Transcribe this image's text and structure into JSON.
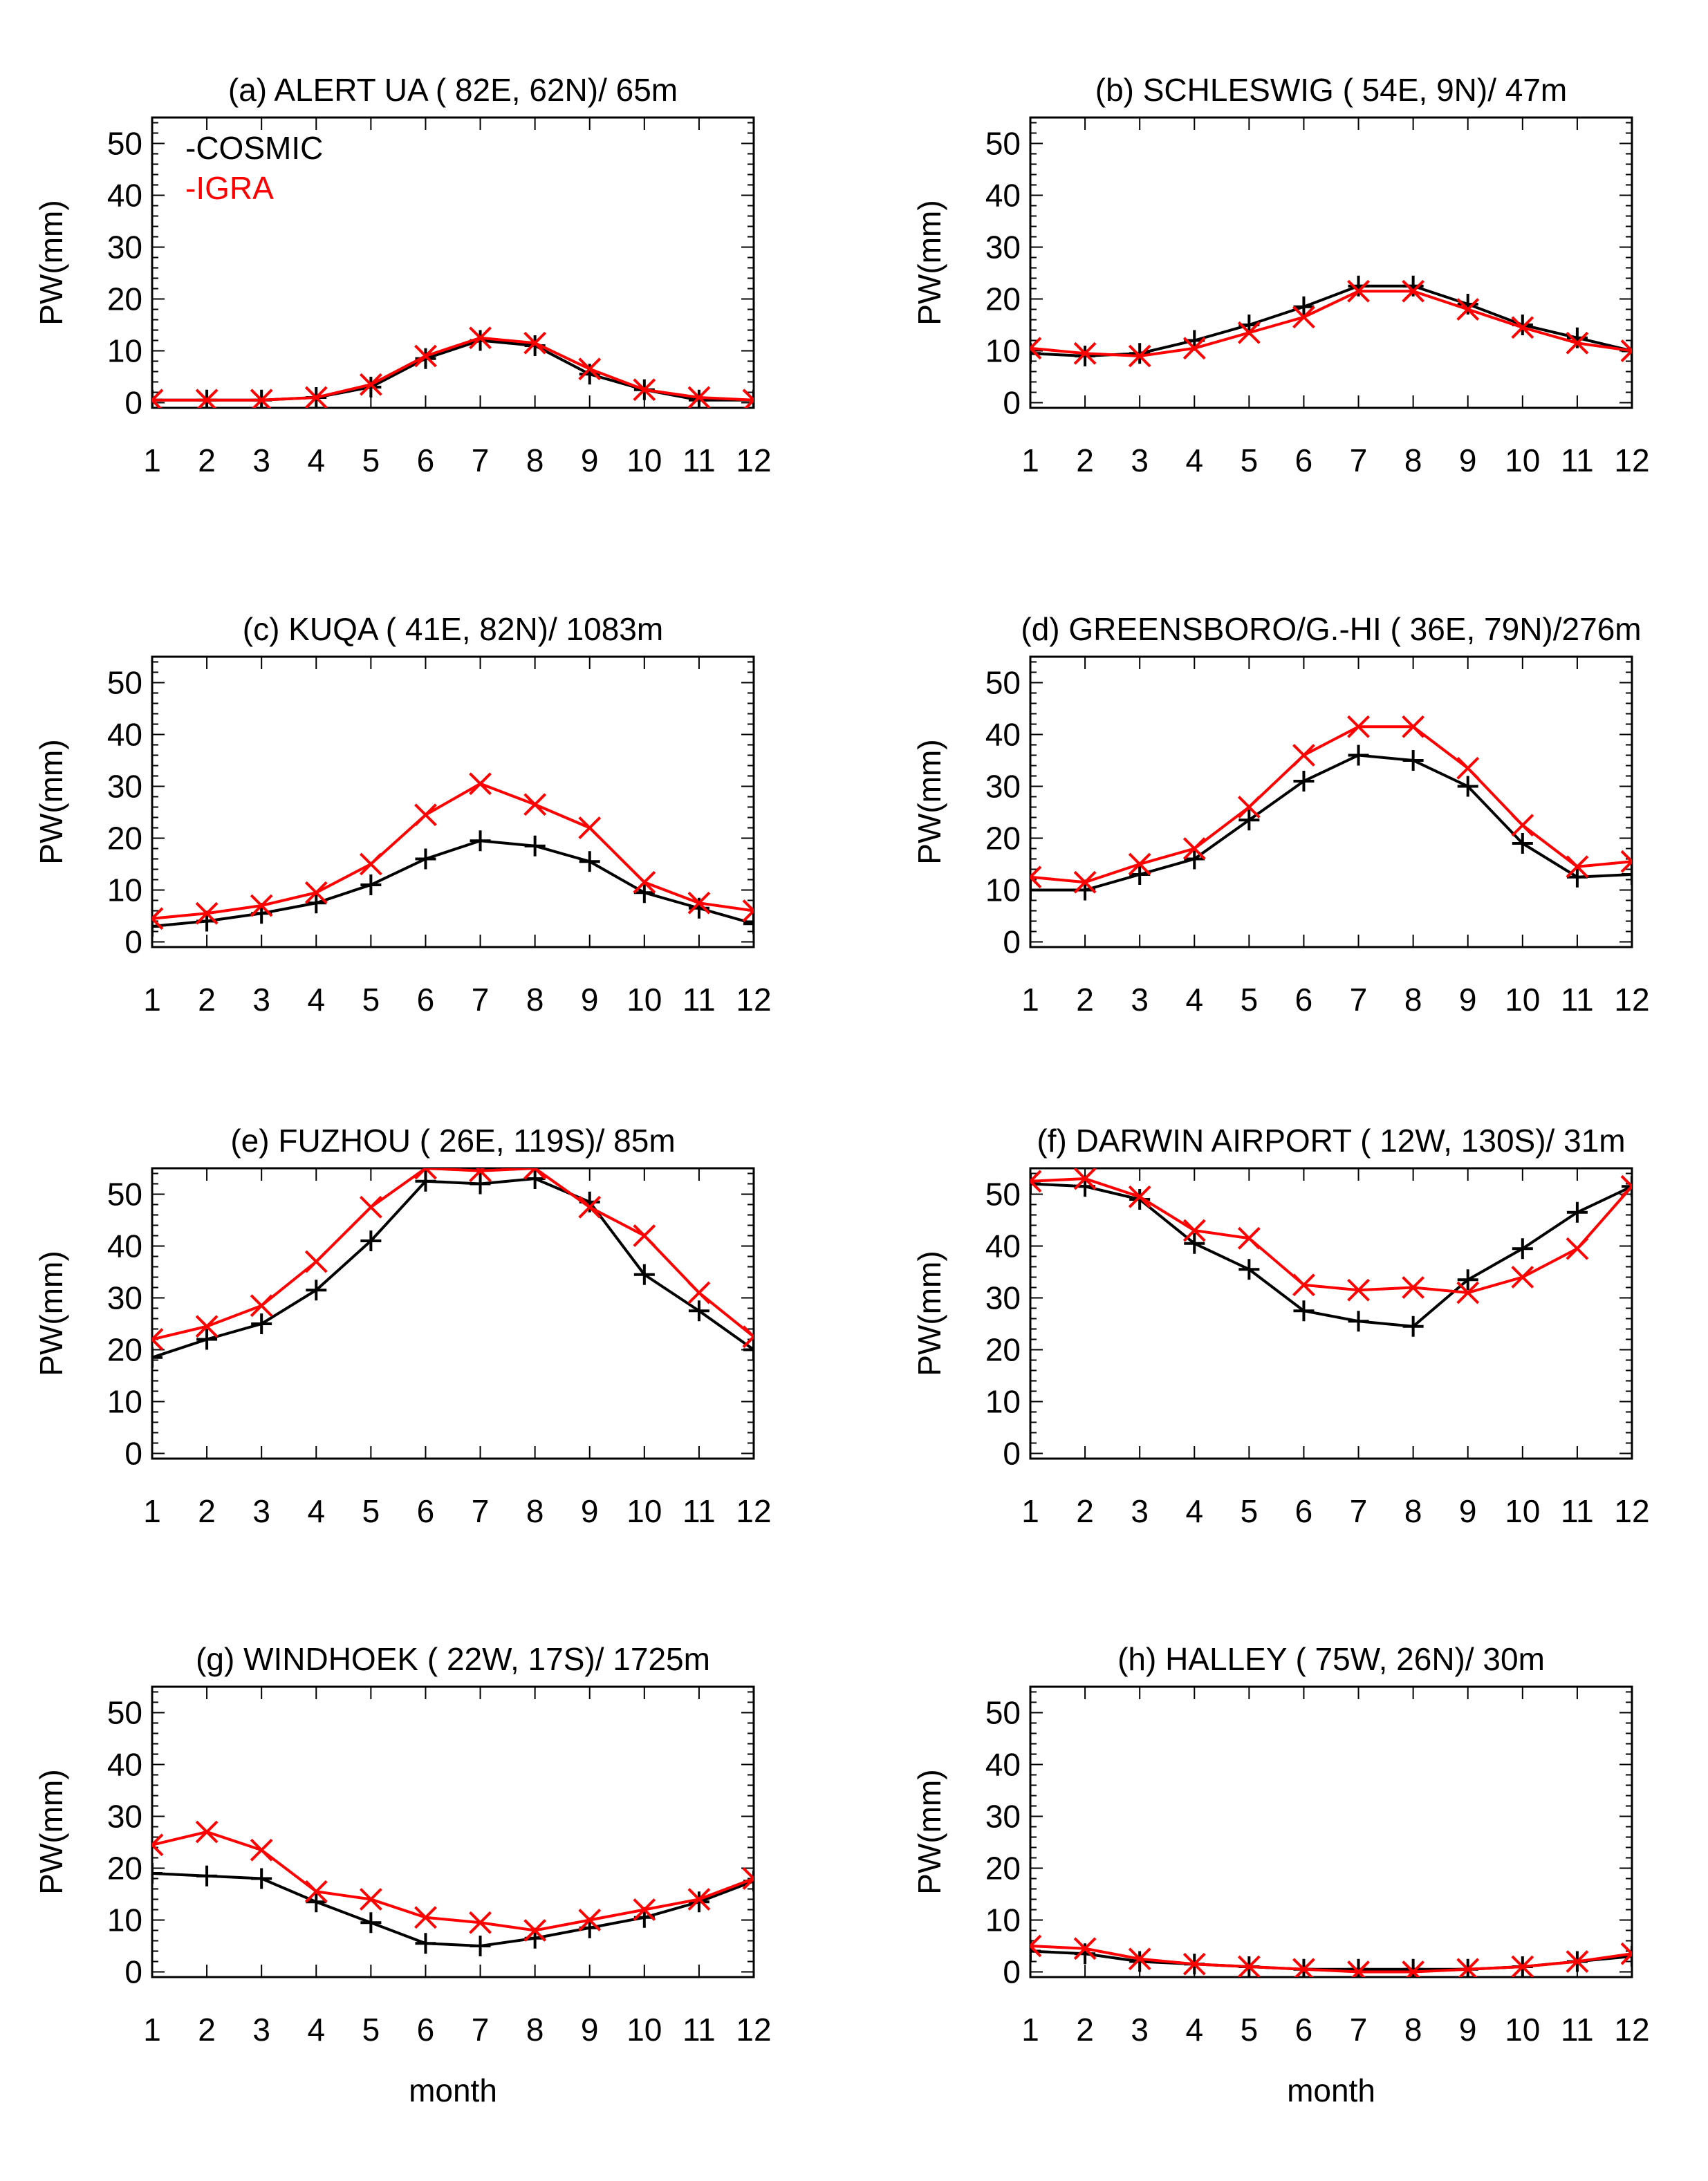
{
  "figure": {
    "y_ticks": [
      0,
      10,
      20,
      30,
      40,
      50
    ],
    "x_ticks": [
      1,
      2,
      3,
      4,
      5,
      6,
      7,
      8,
      9,
      10,
      11,
      12
    ]
  },
  "chart_data": [
    {
      "type": "line",
      "title": "(a) ALERT UA ( 82E, 62N)/ 65m",
      "ylabel": "PW(mm)",
      "xlabel": "",
      "legend": {
        "position": "top-left",
        "entries": [
          {
            "label": "-COSMIC",
            "color": "#000000"
          },
          {
            "label": "-IGRA",
            "color": "#ff0000"
          }
        ]
      },
      "x": [
        1,
        2,
        3,
        4,
        5,
        6,
        7,
        8,
        9,
        10,
        11,
        12
      ],
      "xlim": [
        1,
        12
      ],
      "ylim": [
        -1,
        55
      ],
      "series": [
        {
          "name": "COSMIC",
          "color": "#000000",
          "marker": "plus",
          "values": [
            0.5,
            0.5,
            0.5,
            1,
            3,
            8.5,
            12,
            11,
            5.5,
            2.5,
            0.5,
            0.5
          ]
        },
        {
          "name": "IGRA",
          "color": "#ff0000",
          "marker": "x",
          "values": [
            0.5,
            0.5,
            0.5,
            1,
            3.5,
            9,
            12.5,
            11.5,
            6.5,
            2.5,
            1,
            0.5
          ]
        }
      ]
    },
    {
      "type": "line",
      "title": "(b) SCHLESWIG ( 54E,  9N)/ 47m",
      "ylabel": "PW(mm)",
      "xlabel": "",
      "x": [
        1,
        2,
        3,
        4,
        5,
        6,
        7,
        8,
        9,
        10,
        11,
        12
      ],
      "xlim": [
        1,
        12
      ],
      "ylim": [
        -1,
        55
      ],
      "series": [
        {
          "name": "COSMIC",
          "color": "#000000",
          "marker": "plus",
          "values": [
            9.5,
            9,
            9.5,
            12,
            15,
            18.5,
            22.5,
            22.5,
            19,
            15,
            12.5,
            10
          ]
        },
        {
          "name": "IGRA",
          "color": "#ff0000",
          "marker": "x",
          "values": [
            10.5,
            9.5,
            9,
            10.5,
            13.5,
            16.5,
            21.5,
            21.5,
            18,
            14.5,
            11.5,
            10
          ]
        }
      ]
    },
    {
      "type": "line",
      "title": "(c) KUQA ( 41E, 82N)/ 1083m",
      "ylabel": "PW(mm)",
      "xlabel": "",
      "x": [
        1,
        2,
        3,
        4,
        5,
        6,
        7,
        8,
        9,
        10,
        11,
        12
      ],
      "xlim": [
        1,
        12
      ],
      "ylim": [
        -1,
        55
      ],
      "series": [
        {
          "name": "COSMIC",
          "color": "#000000",
          "marker": "plus",
          "values": [
            3,
            4,
            5.5,
            7.5,
            11,
            16,
            19.5,
            18.5,
            15.5,
            9.5,
            6.5,
            3.5
          ]
        },
        {
          "name": "IGRA",
          "color": "#ff0000",
          "marker": "x",
          "values": [
            4.5,
            5.5,
            7,
            9.5,
            15,
            24.5,
            30.5,
            26.5,
            22,
            11.5,
            7.5,
            6
          ]
        }
      ]
    },
    {
      "type": "line",
      "title": "(d) GREENSBORO/G.-HI ( 36E, 79N)/276m",
      "ylabel": "PW(mm)",
      "xlabel": "",
      "x": [
        1,
        2,
        3,
        4,
        5,
        6,
        7,
        8,
        9,
        10,
        11,
        12
      ],
      "xlim": [
        1,
        12
      ],
      "ylim": [
        -1,
        55
      ],
      "series": [
        {
          "name": "COSMIC",
          "color": "#000000",
          "marker": "plus",
          "values": [
            10,
            10,
            13,
            16,
            23.5,
            31,
            36,
            35,
            30,
            19,
            12.5,
            13
          ]
        },
        {
          "name": "IGRA",
          "color": "#ff0000",
          "marker": "x",
          "values": [
            12.5,
            11.5,
            15,
            18,
            26,
            36,
            41.5,
            41.5,
            33.5,
            22.5,
            14.5,
            15.5
          ]
        }
      ]
    },
    {
      "type": "line",
      "title": "(e) FUZHOU ( 26E, 119S)/  85m",
      "ylabel": "PW(mm)",
      "xlabel": "",
      "x": [
        1,
        2,
        3,
        4,
        5,
        6,
        7,
        8,
        9,
        10,
        11,
        12
      ],
      "xlim": [
        1,
        12
      ],
      "ylim": [
        -1,
        55
      ],
      "series": [
        {
          "name": "COSMIC",
          "color": "#000000",
          "marker": "plus",
          "values": [
            18.5,
            22,
            25,
            31.5,
            41,
            52.5,
            52,
            53,
            48.5,
            34.5,
            27.5,
            20
          ]
        },
        {
          "name": "IGRA",
          "color": "#ff0000",
          "marker": "x",
          "values": [
            22,
            24.5,
            28.5,
            37,
            47.5,
            55,
            54.5,
            55,
            47.5,
            42,
            31,
            22.5
          ]
        }
      ]
    },
    {
      "type": "line",
      "title": "(f) DARWIN AIRPORT    ( 12W, 130S)/ 31m",
      "ylabel": "PW(mm)",
      "xlabel": "",
      "x": [
        1,
        2,
        3,
        4,
        5,
        6,
        7,
        8,
        9,
        10,
        11,
        12
      ],
      "xlim": [
        1,
        12
      ],
      "ylim": [
        -1,
        55
      ],
      "series": [
        {
          "name": "COSMIC",
          "color": "#000000",
          "marker": "plus",
          "values": [
            52,
            51.5,
            49,
            40.5,
            35.5,
            27.5,
            25.5,
            24.5,
            33.5,
            39.5,
            46.5,
            51.5
          ]
        },
        {
          "name": "IGRA",
          "color": "#ff0000",
          "marker": "x",
          "values": [
            52.5,
            53,
            49.5,
            43,
            41.5,
            32.5,
            31.5,
            32,
            31,
            34,
            39.5,
            51.5
          ]
        }
      ]
    },
    {
      "type": "line",
      "title": "(g) WINDHOEK ( 22W, 17S)/ 1725m",
      "ylabel": "PW(mm)",
      "xlabel": "month",
      "x": [
        1,
        2,
        3,
        4,
        5,
        6,
        7,
        8,
        9,
        10,
        11,
        12
      ],
      "xlim": [
        1,
        12
      ],
      "ylim": [
        -1,
        55
      ],
      "series": [
        {
          "name": "COSMIC",
          "color": "#000000",
          "marker": "plus",
          "values": [
            19,
            18.5,
            18,
            13.5,
            9.5,
            5.5,
            5,
            6.5,
            8.5,
            10.5,
            13.5,
            17.5
          ]
        },
        {
          "name": "IGRA",
          "color": "#ff0000",
          "marker": "x",
          "values": [
            24.5,
            27,
            23.5,
            15.5,
            14,
            10.5,
            9.5,
            8,
            10,
            12,
            14,
            18
          ]
        }
      ]
    },
    {
      "type": "line",
      "title": "(h) HALLEY (  75W, 26N)/ 30m",
      "ylabel": "PW(mm)",
      "xlabel": "month",
      "x": [
        1,
        2,
        3,
        4,
        5,
        6,
        7,
        8,
        9,
        10,
        11,
        12
      ],
      "xlim": [
        1,
        12
      ],
      "ylim": [
        -1,
        55
      ],
      "series": [
        {
          "name": "COSMIC",
          "color": "#000000",
          "marker": "plus",
          "values": [
            4,
            3.5,
            2,
            1.5,
            1,
            0.5,
            0.5,
            0.5,
            0.5,
            1,
            2,
            3
          ]
        },
        {
          "name": "IGRA",
          "color": "#ff0000",
          "marker": "x",
          "values": [
            5,
            4.5,
            2.5,
            1.5,
            1,
            0.5,
            0,
            0,
            0.5,
            1,
            2,
            3.5
          ]
        }
      ]
    }
  ]
}
